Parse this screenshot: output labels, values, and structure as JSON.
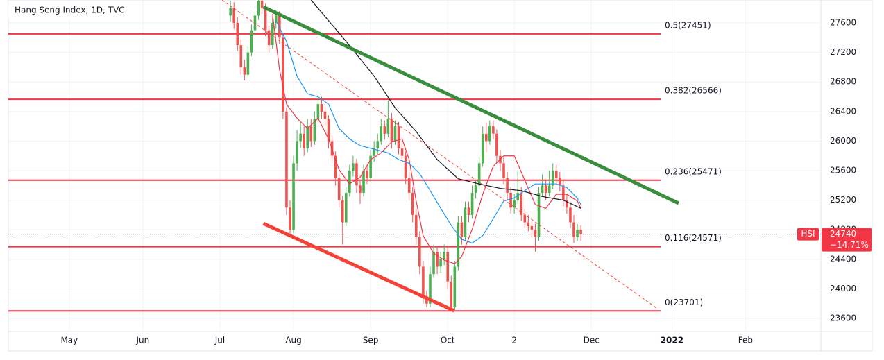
{
  "chart_data": {
    "type": "candlestick",
    "title": "Hang Seng Index, 1D, TVC",
    "up_color": "#4caf50",
    "down_color": "#ef5350",
    "grid": true,
    "xlim": [
      -17.4,
      214.5
    ],
    "xticks": [
      {
        "value": 0,
        "label": "May"
      },
      {
        "value": 21,
        "label": "Jun"
      },
      {
        "value": 43,
        "label": "Jul"
      },
      {
        "value": 64,
        "label": "Aug"
      },
      {
        "value": 86,
        "label": "Sep"
      },
      {
        "value": 108,
        "label": "Oct"
      },
      {
        "value": 127,
        "label": "2"
      },
      {
        "value": 149,
        "label": "Dec"
      },
      {
        "value": 172,
        "label": "2022"
      },
      {
        "value": 193,
        "label": "Feb"
      }
    ],
    "ylim": [
      23422,
      27910
    ],
    "yticks": [
      23600,
      24000,
      24400,
      24800,
      25200,
      25600,
      26000,
      26400,
      26800,
      27200,
      27600
    ],
    "x": [
      46,
      47,
      48,
      49,
      50,
      51,
      52,
      53,
      54,
      55,
      56,
      57,
      58,
      59,
      60,
      61,
      62,
      63,
      64,
      65,
      66,
      67,
      68,
      69,
      70,
      71,
      72,
      73,
      74,
      75,
      76,
      77,
      78,
      79,
      80,
      81,
      82,
      83,
      84,
      85,
      86,
      87,
      88,
      89,
      90,
      91,
      92,
      93,
      94,
      95,
      96,
      97,
      98,
      99,
      100,
      101,
      102,
      103,
      104,
      105,
      106,
      107,
      108,
      109,
      110,
      111,
      112,
      113,
      114,
      115,
      116,
      117,
      118,
      119,
      120,
      121,
      122,
      123,
      124,
      125,
      126,
      127,
      128,
      129,
      130,
      131,
      132,
      133,
      134,
      135,
      136,
      137,
      138,
      139,
      140,
      141,
      142,
      143,
      144,
      145,
      146
    ],
    "ohlc": [
      [
        27700,
        27900,
        27620,
        27800
      ],
      [
        27800,
        27880,
        27520,
        27600
      ],
      [
        27600,
        27680,
        27220,
        27300
      ],
      [
        27300,
        27380,
        26900,
        27000
      ],
      [
        27000,
        27100,
        26820,
        26900
      ],
      [
        26900,
        27280,
        26850,
        27200
      ],
      [
        27200,
        27580,
        27150,
        27500
      ],
      [
        27500,
        27780,
        27420,
        27700
      ],
      [
        27700,
        27950,
        27640,
        27900
      ],
      [
        27900,
        27950,
        27720,
        27800
      ],
      [
        27800,
        27860,
        27420,
        27500
      ],
      [
        27500,
        27560,
        27200,
        27300
      ],
      [
        27300,
        27680,
        27250,
        27600
      ],
      [
        27600,
        27780,
        27520,
        27700
      ],
      [
        27700,
        27760,
        27320,
        27400
      ],
      [
        27400,
        27450,
        26300,
        26400
      ],
      [
        26400,
        26450,
        25000,
        25100
      ],
      [
        25100,
        25200,
        24700,
        24800
      ],
      [
        24800,
        25800,
        24750,
        25700
      ],
      [
        25700,
        26150,
        25600,
        26000
      ],
      [
        26000,
        26250,
        25900,
        26100
      ],
      [
        26100,
        26200,
        25800,
        25900
      ],
      [
        25900,
        26300,
        25850,
        26200
      ],
      [
        26200,
        26300,
        25920,
        26000
      ],
      [
        26000,
        26400,
        25950,
        26300
      ],
      [
        26300,
        26650,
        26250,
        26500
      ],
      [
        26500,
        26600,
        26300,
        26400
      ],
      [
        26400,
        26480,
        26200,
        26300
      ],
      [
        26300,
        26350,
        25900,
        26000
      ],
      [
        26000,
        26080,
        25700,
        25800
      ],
      [
        25800,
        25860,
        25400,
        25500
      ],
      [
        25500,
        25560,
        25100,
        25200
      ],
      [
        25200,
        25260,
        24600,
        24900
      ],
      [
        24900,
        25380,
        24850,
        25300
      ],
      [
        25300,
        25680,
        25250,
        25600
      ],
      [
        25600,
        25800,
        25520,
        25700
      ],
      [
        25700,
        25760,
        25300,
        25400
      ],
      [
        25400,
        25480,
        25150,
        25300
      ],
      [
        25300,
        25680,
        25250,
        25600
      ],
      [
        25600,
        25680,
        25420,
        25500
      ],
      [
        25500,
        25880,
        25450,
        25800
      ],
      [
        25800,
        26000,
        25720,
        25900
      ],
      [
        25900,
        26100,
        25820,
        26000
      ],
      [
        26000,
        26300,
        25950,
        26200
      ],
      [
        26200,
        26280,
        26020,
        26100
      ],
      [
        26100,
        26550,
        26050,
        26300
      ],
      [
        26300,
        26380,
        25900,
        26000
      ],
      [
        26000,
        26280,
        25950,
        26200
      ],
      [
        26200,
        26260,
        25820,
        25900
      ],
      [
        25900,
        25980,
        25700,
        25800
      ],
      [
        25800,
        25860,
        25420,
        25500
      ],
      [
        25500,
        25580,
        25200,
        25300
      ],
      [
        25300,
        25380,
        24900,
        25000
      ],
      [
        25000,
        25080,
        24600,
        24700
      ],
      [
        24700,
        24780,
        24200,
        24300
      ],
      [
        24300,
        24380,
        23800,
        23900
      ],
      [
        23900,
        23980,
        23750,
        23800
      ],
      [
        23800,
        24300,
        23750,
        24200
      ],
      [
        24200,
        24600,
        24150,
        24500
      ],
      [
        24500,
        24580,
        24200,
        24300
      ],
      [
        24300,
        24500,
        24220,
        24400
      ],
      [
        24400,
        24600,
        24320,
        24500
      ],
      [
        24500,
        24580,
        24000,
        24100
      ],
      [
        24100,
        24180,
        23700,
        23750
      ],
      [
        23750,
        24380,
        23700,
        24300
      ],
      [
        24300,
        24980,
        24250,
        24900
      ],
      [
        24900,
        24980,
        24600,
        24700
      ],
      [
        24700,
        25180,
        24650,
        25100
      ],
      [
        25100,
        25180,
        24900,
        25000
      ],
      [
        25000,
        25400,
        24950,
        25300
      ],
      [
        25300,
        25480,
        25220,
        25400
      ],
      [
        25400,
        25780,
        25350,
        25700
      ],
      [
        25700,
        26200,
        25650,
        26100
      ],
      [
        26100,
        26250,
        25850,
        26000
      ],
      [
        26000,
        26280,
        25950,
        26200
      ],
      [
        26200,
        26280,
        26020,
        26100
      ],
      [
        26100,
        26160,
        25700,
        25800
      ],
      [
        25800,
        25880,
        25600,
        25700
      ],
      [
        25700,
        25780,
        25420,
        25500
      ],
      [
        25500,
        25580,
        25200,
        25300
      ],
      [
        25300,
        25380,
        25020,
        25100
      ],
      [
        25100,
        25280,
        25020,
        25200
      ],
      [
        25200,
        25600,
        25150,
        25300
      ],
      [
        25300,
        25380,
        24920,
        25000
      ],
      [
        25000,
        25080,
        24820,
        24900
      ],
      [
        24900,
        25000,
        24780,
        24850
      ],
      [
        24850,
        24920,
        24700,
        24800
      ],
      [
        24800,
        24880,
        24500,
        24700
      ],
      [
        24700,
        25380,
        24650,
        25300
      ],
      [
        25300,
        25550,
        25250,
        25400
      ],
      [
        25400,
        25480,
        25200,
        25300
      ],
      [
        25300,
        25600,
        25250,
        25400
      ],
      [
        25400,
        25700,
        25350,
        25600
      ],
      [
        25600,
        25680,
        25420,
        25500
      ],
      [
        25500,
        25580,
        25320,
        25400
      ],
      [
        25400,
        25480,
        25120,
        25200
      ],
      [
        25200,
        25280,
        25020,
        25100
      ],
      [
        25100,
        25180,
        24820,
        24900
      ],
      [
        24900,
        25000,
        24620,
        24700
      ],
      [
        24700,
        24880,
        24650,
        24800
      ],
      [
        24800,
        24860,
        24650,
        24740
      ]
    ],
    "series": [
      {
        "color": "#f23645",
        "x": [
          58,
          60,
          62,
          65,
          68,
          71,
          74,
          77,
          80,
          83,
          86,
          89,
          92,
          95,
          97,
          99,
          101,
          104,
          107,
          110,
          112,
          115,
          118,
          121,
          124,
          127,
          130,
          133,
          136,
          139,
          142,
          145,
          146
        ],
        "values": [
          27720,
          26970,
          26500,
          26310,
          26170,
          26310,
          26030,
          25610,
          25420,
          25510,
          25750,
          25840,
          25990,
          26030,
          25750,
          25190,
          24720,
          24480,
          24390,
          24340,
          24440,
          24810,
          25280,
          25660,
          25800,
          25800,
          25470,
          25140,
          25090,
          25280,
          25280,
          25190,
          25090
        ]
      },
      {
        "color": "#2196f3",
        "x": [
          59,
          62,
          65,
          68,
          71,
          74,
          77,
          80,
          83,
          87,
          91,
          94,
          97,
          100,
          103,
          106,
          109,
          112,
          115,
          118,
          121,
          124,
          127,
          130,
          133,
          136,
          139,
          142,
          145,
          146
        ],
        "values": [
          27630,
          27350,
          26880,
          26640,
          26600,
          26500,
          26170,
          26030,
          25940,
          25890,
          25840,
          25750,
          25700,
          25560,
          25330,
          25090,
          24860,
          24670,
          24620,
          24720,
          24950,
          25190,
          25230,
          25330,
          25420,
          25420,
          25420,
          25370,
          25230,
          25140
        ]
      },
      {
        "color": "#131722",
        "x": [
          69,
          79,
          87,
          93,
          99,
          105,
          111,
          117,
          123,
          129,
          135,
          141,
          146
        ],
        "values": [
          27910,
          27350,
          26880,
          26450,
          26130,
          25750,
          25490,
          25420,
          25360,
          25330,
          25250,
          25200,
          25090
        ]
      }
    ],
    "trendlines": [
      {
        "color": "#388e3c",
        "dashed": false,
        "x": [
          55.4,
          173.9
        ],
        "values": [
          27816,
          25159
        ]
      },
      {
        "color": "#f44336",
        "dashed": false,
        "x": [
          55.4,
          109.9
        ],
        "values": [
          24886,
          23703
        ]
      },
      {
        "color": "#f44336",
        "dashed": true,
        "x": [
          43.6,
          167.9
        ],
        "values": [
          27910,
          23731
        ]
      }
    ],
    "level_color": "#f23645",
    "levels": [
      {
        "value": 27451,
        "label": "0.5(27451)"
      },
      {
        "value": 26566,
        "label": "0.382(26566)"
      },
      {
        "value": 25471,
        "label": "0.236(25471)"
      },
      {
        "value": 24571,
        "label": "0.116(24571)"
      },
      {
        "value": 23701,
        "label": "0(23701)"
      }
    ],
    "last": {
      "symbol": "HSI",
      "value": 24740,
      "change": "−14.71%",
      "color": "#f23645"
    }
  }
}
